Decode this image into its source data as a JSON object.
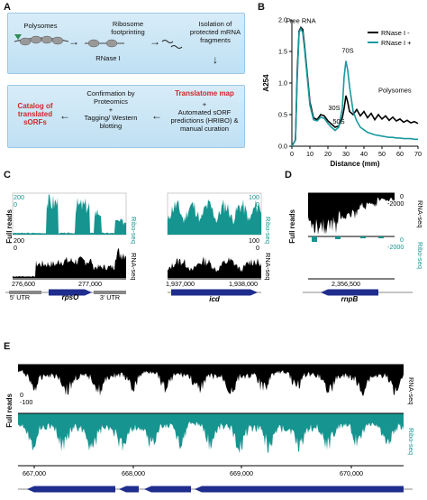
{
  "panels": {
    "A": "A",
    "B": "B",
    "C": "C",
    "D": "D",
    "E": "E"
  },
  "panelA": {
    "polysomes": "Polysomes",
    "ribosome_footprinting": "Ribosome footprinting",
    "rnase": "RNase I",
    "isolation": "Isolation of protected mRNA fragments",
    "catalog": "Catalog of translated sORFs",
    "confirmation": "Confirmation by Proteomics",
    "plus1": "+",
    "tagging": "Tagging/ Western blotting",
    "translatome_map": "Translatome map",
    "plus2": "+",
    "automated": "Automated sORF predictions (HRIBO) & manual curation"
  },
  "panelB": {
    "chart_data": {
      "type": "line",
      "xlabel": "Distance (mm)",
      "ylabel": "A254",
      "xlim": [
        0,
        70
      ],
      "ylim": [
        0,
        2.0
      ],
      "xticks": [
        0,
        10,
        20,
        30,
        40,
        50,
        60,
        70
      ],
      "yticks": [
        0.0,
        0.5,
        1.0,
        1.5,
        2.0
      ],
      "legend_position": "top-right",
      "series": [
        {
          "name": "RNase I -",
          "color": "#000000",
          "x": [
            0,
            2,
            3,
            4,
            5,
            6,
            7,
            8,
            10,
            12,
            14,
            16,
            18,
            20,
            22,
            24,
            26,
            28,
            29,
            30,
            31,
            32,
            34,
            36,
            38,
            40,
            42,
            44,
            46,
            48,
            50,
            52,
            54,
            56,
            58,
            60,
            62,
            64,
            66,
            68,
            70
          ],
          "y": [
            0,
            0.1,
            1.2,
            1.82,
            1.88,
            1.85,
            1.6,
            1.3,
            0.7,
            0.45,
            0.42,
            0.5,
            0.48,
            0.4,
            0.35,
            0.3,
            0.32,
            0.45,
            0.6,
            0.8,
            0.7,
            0.55,
            0.5,
            0.58,
            0.48,
            0.55,
            0.45,
            0.52,
            0.42,
            0.5,
            0.43,
            0.48,
            0.41,
            0.46,
            0.4,
            0.43,
            0.38,
            0.41,
            0.37,
            0.39,
            0.36
          ]
        },
        {
          "name": "RNase I +",
          "color": "#1a9aa0",
          "x": [
            0,
            2,
            3,
            4,
            5,
            6,
            7,
            8,
            10,
            12,
            14,
            16,
            18,
            20,
            22,
            24,
            26,
            28,
            29,
            30,
            31,
            32,
            34,
            36,
            38,
            40,
            42,
            44,
            46,
            48,
            50,
            52,
            54,
            56,
            58,
            60,
            62,
            64,
            66,
            68,
            70
          ],
          "y": [
            0,
            0.1,
            1.1,
            1.8,
            1.86,
            1.8,
            1.55,
            1.25,
            0.65,
            0.42,
            0.4,
            0.46,
            0.44,
            0.36,
            0.3,
            0.25,
            0.3,
            0.6,
            1.1,
            1.35,
            1.2,
            0.95,
            0.55,
            0.4,
            0.3,
            0.26,
            0.22,
            0.2,
            0.18,
            0.17,
            0.16,
            0.15,
            0.14,
            0.14,
            0.13,
            0.13,
            0.12,
            0.12,
            0.12,
            0.11,
            0.11
          ]
        }
      ],
      "annotations": [
        "Free RNA",
        "30S",
        "50S",
        "70S",
        "Polysomes"
      ]
    },
    "legend": [
      "RNase I -",
      "RNase I +"
    ],
    "ann_free": "Free RNA",
    "ann_30s": "30S",
    "ann_50s": "50S",
    "ann_70s": "70S",
    "ann_poly": "Polysomes",
    "xlabel": "Distance (mm)",
    "ylabel": "A254"
  },
  "panelC": {
    "full_reads": "Full reads",
    "ribo": "Ribo-seq",
    "rna": "RNA-seq",
    "left": {
      "ribo_max": "200",
      "ribo_min": "0",
      "rna_max": "200",
      "rna_min": "0",
      "x1": "276,600",
      "x2": "277,000",
      "gene": "rpsO",
      "utr5": "5' UTR",
      "utr3": "3' UTR"
    },
    "right": {
      "ribo_max": "100",
      "ribo_min": "0",
      "rna_max": "100",
      "rna_min": "0",
      "x1": "1,937,000",
      "x2": "1,938,000",
      "gene": "icd"
    }
  },
  "panelD": {
    "full_reads": "Full reads",
    "rna": "RNA-seq",
    "ribo": "Ribo-seq",
    "rna_max": "0",
    "rna_min": "-2000",
    "ribo_max": "0",
    "ribo_min": "-2000",
    "x1": "2,356,500",
    "gene": "rnpB"
  },
  "panelE": {
    "full_reads": "Full reads",
    "rna": "RNA-seq",
    "ribo": "Ribo-seq",
    "rna_max": "0",
    "rna_min": "-100",
    "ribo_max": "0",
    "ribo_min": "-100",
    "xticks": [
      "667,000",
      "668,000",
      "669,000",
      "670,000"
    ]
  },
  "colors": {
    "teal": "#16948f",
    "black": "#000000",
    "gene": "#1f2d8f"
  }
}
